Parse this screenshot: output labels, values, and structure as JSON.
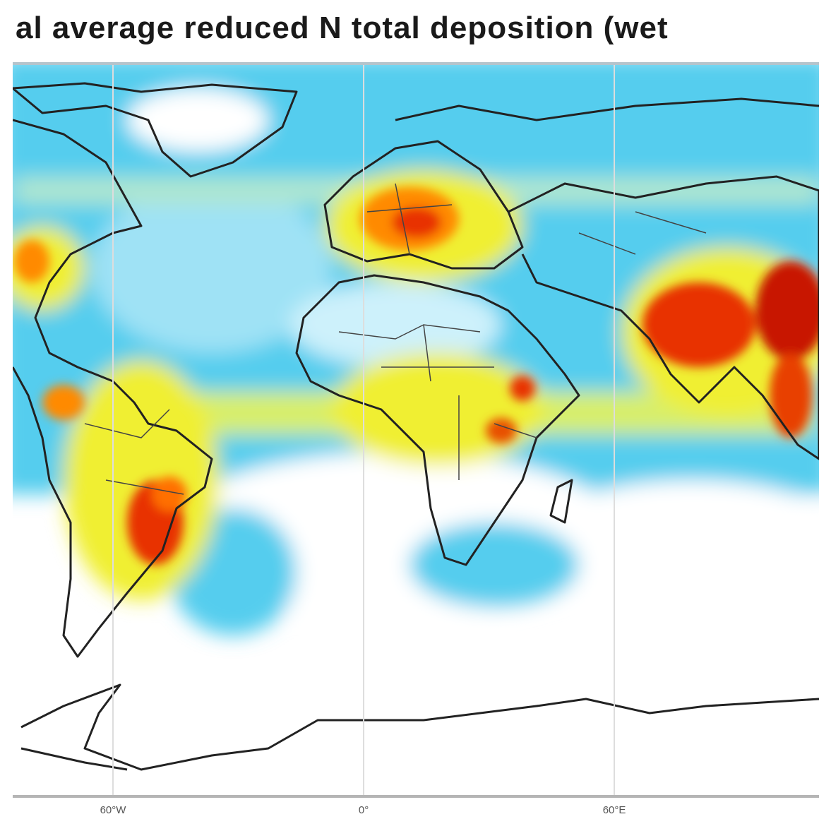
{
  "map": {
    "title": "al average reduced N total deposition (wet",
    "lonlim": [
      -84,
      109
    ],
    "lon_ticks": [
      {
        "value": -60,
        "label": "60°W"
      },
      {
        "value": 0,
        "label": "0°"
      },
      {
        "value": 60,
        "label": "60°E"
      }
    ],
    "grid": true
  }
}
